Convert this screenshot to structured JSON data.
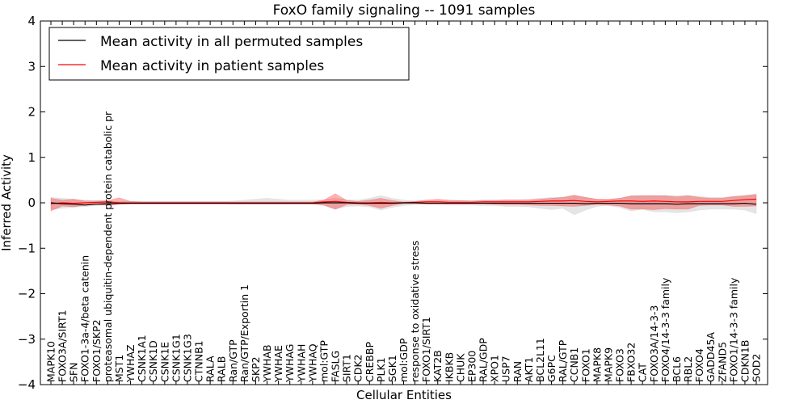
{
  "chart_data": {
    "type": "line",
    "title": "FoxO family signaling -- 1091 samples",
    "xlabel": "Cellular Entities",
    "ylabel": "Inferred Activity",
    "ylim": [
      -4,
      4
    ],
    "yticks": [
      -4,
      -3,
      -2,
      -1,
      0,
      1,
      2,
      3,
      4
    ],
    "ytick_labels": [
      "−4",
      "−3",
      "−2",
      "−1",
      "0",
      "1",
      "2",
      "3",
      "4"
    ],
    "legend_position": "top-left",
    "categories": [
      "MAPK10",
      "FOXO3A/SIRT1",
      "SFN",
      "FOXO1-3a-4/beta catenin",
      "FOXO1/SKP2",
      "proteasomal ubiquitin-dependent protein catabolic pr",
      "MST1",
      "YWHAZ",
      "CSNK1A1",
      "CSNK1D",
      "CSNK1E",
      "CSNK1G1",
      "CSNK1G3",
      "CTNNB1",
      "RALA",
      "RALB",
      "Ran/GTP",
      "Ran/GTP/Exportin 1",
      "SKP2",
      "YWHAB",
      "YWHAE",
      "YWHAG",
      "YWHAH",
      "YWHAQ",
      "mol:GTP",
      "FASLG",
      "SIRT1",
      "CDK2",
      "CREBBP",
      "PLK1",
      "SGK1",
      "mol:GDP",
      "response to oxidative stress",
      "FOXO1/SIRT1",
      "KAT2B",
      "IKBKB",
      "CHUK",
      "EP300",
      "RAL/GDP",
      "XPO1",
      "USP7",
      "RAN",
      "AKT1",
      "BCL2L11",
      "G6PC",
      "RAL/GTP",
      "CCNB1",
      "FOXO1",
      "MAPK8",
      "MAPK9",
      "FOXO3",
      "FBXO32",
      "CAT",
      "FOXO3A/14-3-3",
      "FOXO4/14-3-3 family",
      "BCL6",
      "RBL2",
      "FOXO4",
      "GADD45A",
      "ZFAND5",
      "FOXO1/14-3-3 family",
      "CDKN1B",
      "SOD2"
    ],
    "series": [
      {
        "name": "Mean activity in all permuted samples",
        "color": "#000000",
        "values": [
          0.0,
          -0.02,
          -0.03,
          -0.05,
          -0.03,
          -0.02,
          -0.01,
          -0.01,
          -0.01,
          -0.01,
          -0.01,
          -0.01,
          -0.01,
          -0.01,
          -0.01,
          -0.01,
          -0.01,
          -0.01,
          -0.01,
          -0.01,
          -0.01,
          -0.01,
          -0.01,
          -0.01,
          0.0,
          0.0,
          0.0,
          -0.01,
          -0.01,
          -0.01,
          -0.01,
          0.0,
          0.0,
          -0.01,
          -0.01,
          -0.01,
          -0.01,
          -0.01,
          -0.01,
          -0.01,
          -0.01,
          -0.01,
          -0.01,
          -0.01,
          -0.01,
          -0.01,
          -0.01,
          -0.02,
          -0.01,
          -0.01,
          -0.01,
          -0.02,
          -0.02,
          -0.02,
          -0.02,
          -0.03,
          -0.02,
          -0.02,
          -0.02,
          -0.02,
          -0.02,
          -0.01,
          -0.03
        ],
        "band_lower": [
          -0.14,
          -0.12,
          -0.1,
          -0.08,
          -0.06,
          -0.05,
          -0.04,
          -0.03,
          -0.03,
          -0.03,
          -0.03,
          -0.03,
          -0.03,
          -0.03,
          -0.03,
          -0.03,
          -0.04,
          -0.04,
          -0.04,
          -0.04,
          -0.04,
          -0.04,
          -0.04,
          -0.04,
          -0.06,
          -0.14,
          -0.08,
          -0.07,
          -0.09,
          -0.16,
          -0.1,
          -0.06,
          -0.04,
          -0.04,
          -0.04,
          -0.05,
          -0.05,
          -0.05,
          -0.06,
          -0.06,
          -0.08,
          -0.08,
          -0.09,
          -0.12,
          -0.15,
          -0.12,
          -0.26,
          -0.16,
          -0.08,
          -0.06,
          -0.1,
          -0.18,
          -0.14,
          -0.2,
          -0.2,
          -0.22,
          -0.2,
          -0.16,
          -0.14,
          -0.14,
          -0.14,
          -0.16,
          -0.24
        ],
        "band_upper": [
          0.12,
          0.1,
          0.08,
          0.06,
          0.05,
          0.04,
          0.03,
          0.03,
          0.03,
          0.03,
          0.03,
          0.03,
          0.03,
          0.03,
          0.03,
          0.03,
          0.04,
          0.06,
          0.08,
          0.1,
          0.08,
          0.06,
          0.06,
          0.06,
          0.07,
          0.1,
          0.07,
          0.06,
          0.1,
          0.16,
          0.1,
          0.06,
          0.04,
          0.04,
          0.04,
          0.04,
          0.05,
          0.05,
          0.06,
          0.06,
          0.07,
          0.07,
          0.08,
          0.1,
          0.12,
          0.12,
          0.16,
          0.12,
          0.08,
          0.07,
          0.1,
          0.16,
          0.16,
          0.16,
          0.16,
          0.16,
          0.16,
          0.14,
          0.12,
          0.12,
          0.14,
          0.16,
          0.2
        ]
      },
      {
        "name": "Mean activity in patient samples",
        "color": "#ff0000",
        "values": [
          -0.02,
          0.0,
          -0.01,
          0.0,
          0.01,
          0.02,
          0.0,
          0.0,
          0.0,
          0.0,
          0.0,
          0.0,
          0.0,
          0.0,
          0.0,
          0.0,
          0.0,
          0.0,
          0.0,
          0.0,
          0.0,
          0.0,
          0.0,
          0.0,
          0.02,
          0.03,
          0.01,
          0.0,
          0.0,
          0.01,
          0.0,
          0.0,
          0.01,
          0.02,
          0.02,
          0.01,
          0.01,
          0.01,
          0.02,
          0.02,
          0.02,
          0.02,
          0.02,
          0.03,
          0.04,
          0.04,
          0.05,
          0.03,
          0.02,
          0.03,
          0.04,
          0.04,
          0.03,
          0.04,
          0.03,
          0.02,
          0.02,
          0.03,
          0.03,
          0.03,
          0.05,
          0.07,
          0.08
        ],
        "band_lower": [
          -0.18,
          -0.07,
          -0.09,
          -0.05,
          -0.03,
          -0.06,
          -0.03,
          -0.02,
          -0.02,
          -0.02,
          -0.02,
          -0.02,
          -0.02,
          -0.02,
          -0.02,
          -0.02,
          -0.02,
          -0.02,
          -0.02,
          -0.02,
          -0.02,
          -0.02,
          -0.02,
          -0.02,
          -0.05,
          -0.14,
          -0.04,
          -0.03,
          -0.06,
          -0.12,
          -0.06,
          -0.02,
          -0.02,
          -0.02,
          -0.02,
          -0.02,
          -0.02,
          -0.02,
          -0.02,
          -0.03,
          -0.04,
          -0.04,
          -0.05,
          -0.06,
          -0.06,
          -0.07,
          -0.08,
          -0.06,
          -0.04,
          -0.05,
          -0.07,
          -0.14,
          -0.14,
          -0.15,
          -0.13,
          -0.14,
          -0.14,
          -0.06,
          -0.05,
          -0.05,
          -0.08,
          -0.08,
          -0.07
        ],
        "band_upper": [
          0.1,
          0.06,
          0.08,
          0.04,
          0.04,
          0.05,
          0.11,
          0.03,
          0.02,
          0.02,
          0.02,
          0.02,
          0.02,
          0.02,
          0.02,
          0.02,
          0.02,
          0.02,
          0.02,
          0.02,
          0.02,
          0.02,
          0.02,
          0.02,
          0.06,
          0.2,
          0.05,
          0.03,
          0.06,
          0.1,
          0.05,
          0.02,
          0.03,
          0.06,
          0.08,
          0.06,
          0.05,
          0.04,
          0.05,
          0.05,
          0.06,
          0.06,
          0.06,
          0.08,
          0.1,
          0.12,
          0.17,
          0.12,
          0.08,
          0.08,
          0.1,
          0.15,
          0.16,
          0.16,
          0.16,
          0.13,
          0.16,
          0.12,
          0.1,
          0.1,
          0.14,
          0.16,
          0.18
        ]
      }
    ],
    "band_colors": [
      "#cccccc",
      "#ff0000"
    ]
  }
}
